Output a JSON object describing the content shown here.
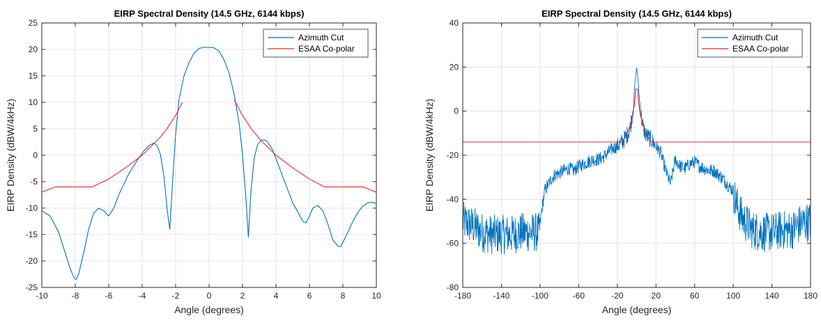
{
  "chart_data": [
    {
      "type": "line",
      "title": "EIRP Spectral Density (14.5 GHz, 6144 kbps)",
      "xlabel": "Angle (degrees)",
      "ylabel": "EIRP Density (dBW/4kHz)",
      "xlim": [
        -10,
        10
      ],
      "ylim": [
        -25,
        25
      ],
      "xticks": [
        -10,
        -8,
        -6,
        -4,
        -2,
        0,
        2,
        4,
        6,
        8,
        10
      ],
      "yticks": [
        -25,
        -20,
        -15,
        -10,
        -5,
        0,
        5,
        10,
        15,
        20,
        25
      ],
      "grid": true,
      "legend_position": "top-right",
      "series": [
        {
          "name": "Azimuth Cut",
          "color": "#0072BD",
          "x": [
            -10,
            -9.5,
            -9.0,
            -8.6,
            -8.3,
            -8.1,
            -7.95,
            -7.8,
            -7.5,
            -7.2,
            -6.9,
            -6.6,
            -6.3,
            -6.0,
            -5.7,
            -5.4,
            -5.1,
            -4.8,
            -4.5,
            -4.2,
            -3.9,
            -3.6,
            -3.3,
            -3.1,
            -2.9,
            -2.7,
            -2.5,
            -2.35,
            -2.2,
            -2.0,
            -1.8,
            -1.5,
            -1.2,
            -0.9,
            -0.6,
            -0.3,
            0,
            0.3,
            0.6,
            0.9,
            1.2,
            1.5,
            1.8,
            2.0,
            2.2,
            2.35,
            2.5,
            2.7,
            2.9,
            3.1,
            3.3,
            3.5,
            3.8,
            4.1,
            4.4,
            4.7,
            5.0,
            5.3,
            5.6,
            5.8,
            6.0,
            6.2,
            6.5,
            6.8,
            7.1,
            7.4,
            7.7,
            7.85,
            8.0,
            8.3,
            8.6,
            8.9,
            9.2,
            9.5,
            9.8,
            10
          ],
          "y": [
            -10.5,
            -11.5,
            -14.5,
            -18.5,
            -21.5,
            -23.0,
            -23.5,
            -22.5,
            -18.5,
            -14.0,
            -11.0,
            -10.0,
            -10.5,
            -11.5,
            -10.0,
            -7.5,
            -5.5,
            -3.5,
            -2.0,
            -0.5,
            0.8,
            1.8,
            2.3,
            1.8,
            0.0,
            -4.0,
            -10.5,
            -14.0,
            -6.0,
            4.0,
            10.5,
            15.0,
            17.5,
            19.3,
            20.2,
            20.4,
            20.4,
            20.3,
            19.7,
            18.0,
            15.5,
            11.5,
            6.0,
            0.0,
            -8.0,
            -15.5,
            -7.0,
            -0.5,
            2.0,
            2.8,
            2.9,
            2.5,
            1.0,
            -1.5,
            -4.0,
            -6.5,
            -9.0,
            -10.7,
            -12.5,
            -12.8,
            -11.5,
            -10.0,
            -9.5,
            -10.5,
            -13.0,
            -16.0,
            -17.2,
            -17.3,
            -16.5,
            -14.5,
            -12.5,
            -10.8,
            -9.6,
            -9.0,
            -8.9,
            -9.2
          ]
        },
        {
          "name": "ESAA Co-polar",
          "color": "#E8272B",
          "x": [
            -10,
            -9.2,
            -7.0,
            -6.0,
            -5.0,
            -4.0,
            -3.0,
            -2.5,
            -2.0,
            -1.6,
            null,
            1.5,
            2.0,
            2.5,
            3.0,
            4.0,
            5.0,
            6.0,
            6.9,
            9.2,
            10
          ],
          "y": [
            -7.0,
            -6.0,
            -6.0,
            -4.5,
            -2.4,
            0.0,
            3.1,
            5.1,
            7.5,
            10.0,
            null,
            10.5,
            7.5,
            5.1,
            3.1,
            0.0,
            -2.4,
            -4.5,
            -6.0,
            -6.0,
            -7.0
          ]
        }
      ]
    },
    {
      "type": "line",
      "title": "EIRP Spectral Density (14.5 GHz, 6144 kbps)",
      "xlabel": "Angle (degrees)",
      "ylabel": "EIRP Density (dBW/4kHz)",
      "xlim": [
        -180,
        180
      ],
      "ylim": [
        -80,
        40
      ],
      "xticks": [
        -180,
        -140,
        -100,
        -60,
        -20,
        20,
        60,
        100,
        140,
        180
      ],
      "yticks": [
        -80,
        -60,
        -40,
        -20,
        0,
        20,
        40
      ],
      "grid": true,
      "legend_position": "top-right",
      "series": [
        {
          "name": "Azimuth Cut",
          "color": "#0072BD",
          "noisy": true,
          "x": [
            -180,
            -170,
            -160,
            -150,
            -140,
            -130,
            -120,
            -110,
            -101,
            -98,
            -95,
            -90,
            -85,
            -80,
            -75,
            -70,
            -65,
            -60,
            -55,
            -50,
            -45,
            -40,
            -35,
            -30,
            -25,
            -20,
            -15,
            -10,
            -7,
            -5,
            -3,
            -1.5,
            0,
            1.5,
            3,
            5,
            7,
            10,
            15,
            20,
            25,
            30,
            35,
            40,
            45,
            50,
            55,
            60,
            65,
            70,
            75,
            80,
            85,
            90,
            95,
            100,
            103,
            110,
            120,
            130,
            140,
            150,
            160,
            170,
            180
          ],
          "y": [
            -50,
            -52,
            -55,
            -56,
            -56,
            -56,
            -55,
            -55,
            -55,
            -44,
            -36,
            -32,
            -29,
            -28,
            -27,
            -26,
            -27,
            -25,
            -24,
            -23,
            -22,
            -22,
            -21,
            -19,
            -17,
            -16,
            -14,
            -11,
            -8,
            -3,
            5,
            14,
            20,
            14,
            5,
            -3,
            -8,
            -11,
            -13,
            -16,
            -19,
            -27,
            -33,
            -22,
            -25,
            -26,
            -24,
            -23,
            -25,
            -26,
            -27,
            -27,
            -29,
            -31,
            -34,
            -36,
            -42,
            -49,
            -54,
            -55,
            -55,
            -54,
            -54,
            -51,
            -50
          ]
        },
        {
          "name": "ESAA Co-polar",
          "color": "#E8272B",
          "x": [
            -180,
            -15,
            -10,
            -8,
            -6,
            -4,
            -3,
            -2,
            -1.5,
            -1,
            1,
            1.5,
            2,
            3,
            4,
            6,
            8,
            10,
            15,
            180
          ],
          "y": [
            -14,
            -14,
            -10.5,
            -8,
            -5.5,
            -2,
            1,
            4,
            6.5,
            10,
            10,
            6.5,
            4,
            1,
            -2,
            -5.5,
            -8,
            -10.5,
            -14,
            -14
          ]
        }
      ]
    }
  ]
}
